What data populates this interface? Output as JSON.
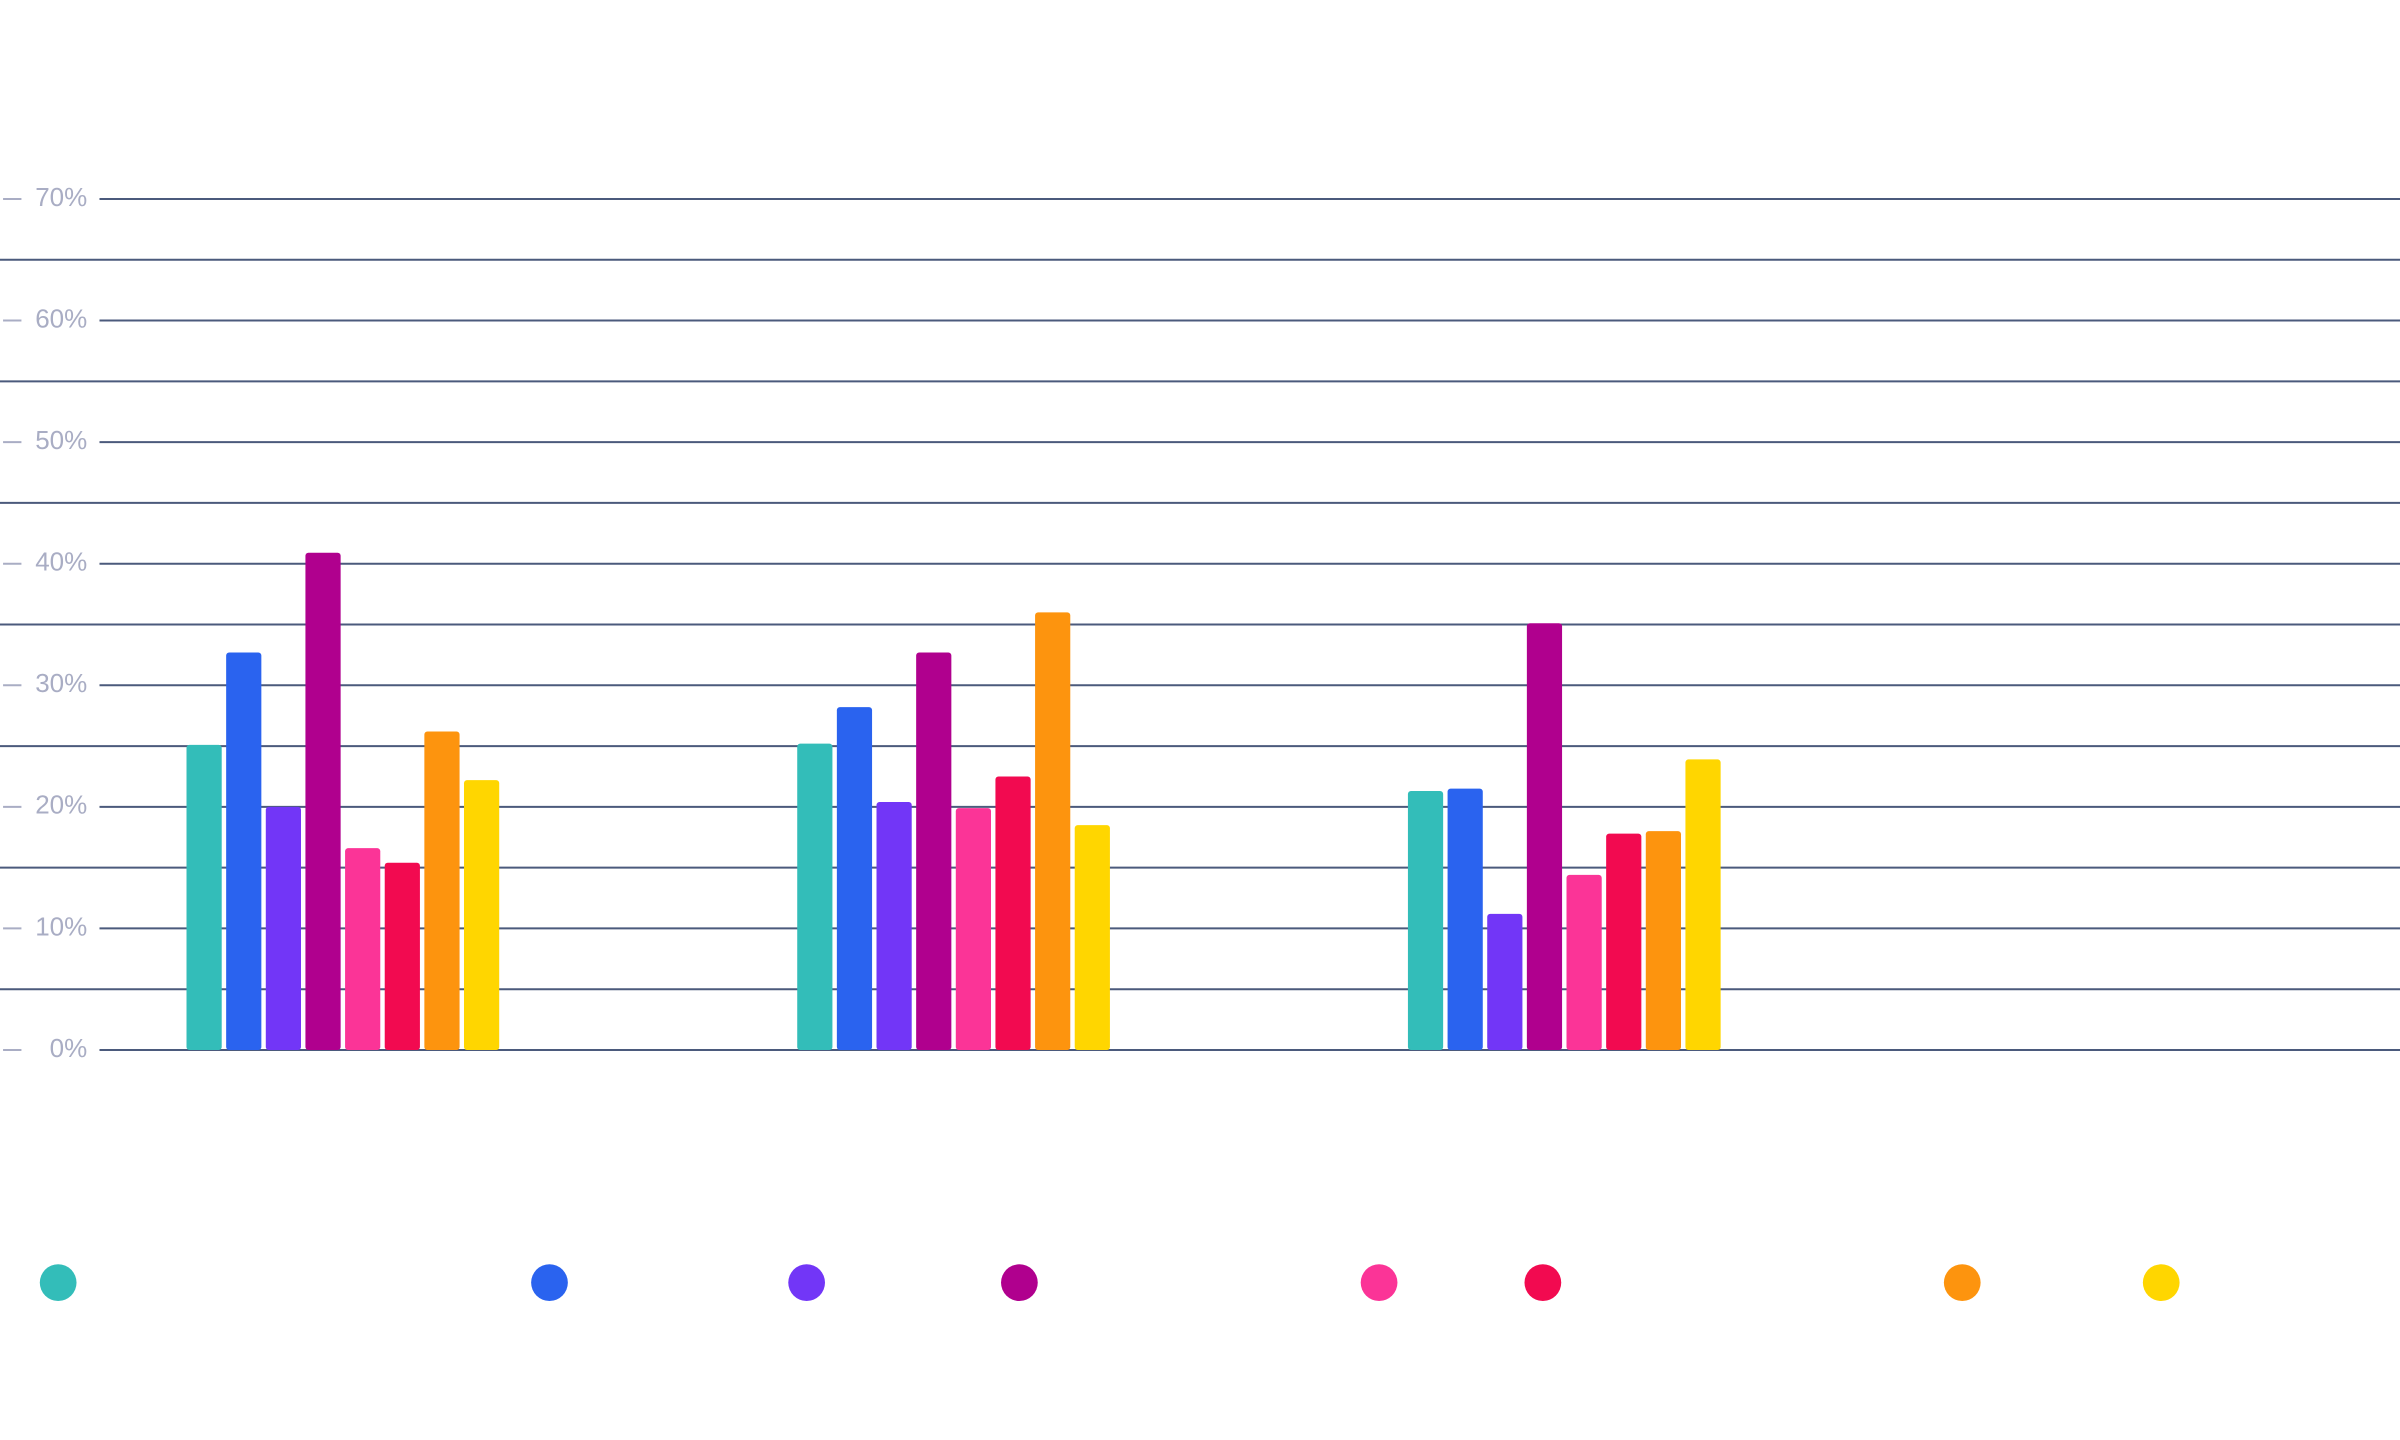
{
  "chart_data": {
    "type": "bar",
    "categories": [
      null,
      null,
      null
    ],
    "series": [
      {
        "color": "#33bdb9",
        "values": [
          25.1,
          25.2,
          21.3
        ]
      },
      {
        "color": "#2a63ef",
        "values": [
          32.7,
          28.2,
          21.5
        ]
      },
      {
        "color": "#7236f7",
        "values": [
          20,
          20.4,
          11.2
        ]
      },
      {
        "color": "#b0008e",
        "values": [
          40.9,
          32.7,
          35.1
        ]
      },
      {
        "color": "#fb3497",
        "values": [
          16.6,
          19.9,
          14.4
        ]
      },
      {
        "color": "#f20a50",
        "values": [
          15.4,
          22.5,
          17.8
        ]
      },
      {
        "color": "#fd940e",
        "values": [
          26.2,
          36,
          18
        ]
      },
      {
        "color": "#ffd600",
        "values": [
          22.2,
          18.5,
          23.9
        ]
      }
    ],
    "ylim": [
      0,
      70
    ],
    "yticks": [
      {
        "value": 0,
        "label": "0%"
      },
      {
        "value": 10,
        "label": "10%"
      },
      {
        "value": 20,
        "label": "20%"
      },
      {
        "value": 30,
        "label": "30%"
      },
      {
        "value": 40,
        "label": "40%"
      },
      {
        "value": 50,
        "label": "50%"
      },
      {
        "value": 60,
        "label": "60%"
      },
      {
        "value": 70,
        "label": "70%"
      }
    ],
    "minor_yticks": [
      5,
      15,
      25,
      35,
      45,
      55,
      65
    ],
    "grid": true
  }
}
